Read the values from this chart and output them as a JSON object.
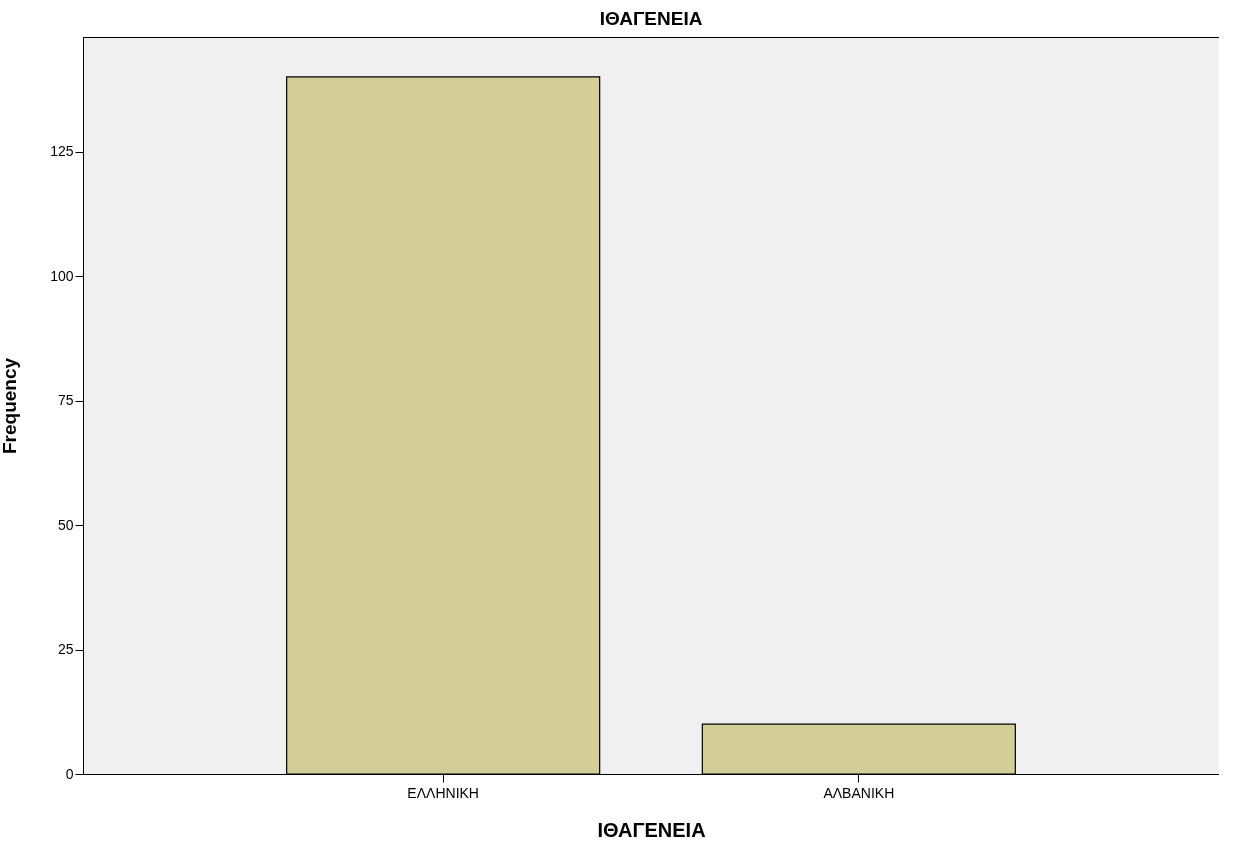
{
  "chart_data": {
    "type": "bar",
    "title": "ΙΘΑΓΕΝΕΙΑ",
    "xlabel": "ΙΘΑΓΕΝΕΙΑ",
    "ylabel": "Frequency",
    "categories": [
      "ΕΛΛΗΝΙΚΗ",
      "ΑΛΒΑΝΙΚΗ"
    ],
    "values": [
      140,
      10
    ],
    "color": "#d3ce97",
    "ylim": [
      0,
      148
    ],
    "yticks": [
      0,
      25,
      50,
      75,
      100,
      125
    ],
    "grid": false
  }
}
